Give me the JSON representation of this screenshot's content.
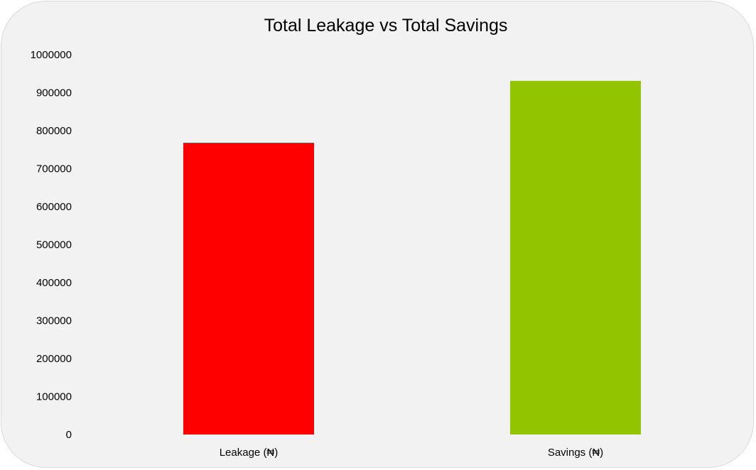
{
  "chart_data": {
    "type": "bar",
    "title": "Total Leakage vs Total Savings",
    "categories": [
      "Leakage (₦)",
      "Savings (₦)"
    ],
    "values": [
      768000,
      931000
    ],
    "colors": [
      "#ff0000",
      "#92c500"
    ],
    "ylim": [
      0,
      1000000
    ],
    "yticks": [
      "0",
      "100000",
      "200000",
      "300000",
      "400000",
      "500000",
      "600000",
      "700000",
      "800000",
      "900000",
      "1000000"
    ],
    "xlabel": "",
    "ylabel": "",
    "grid": false,
    "legend": "none"
  }
}
